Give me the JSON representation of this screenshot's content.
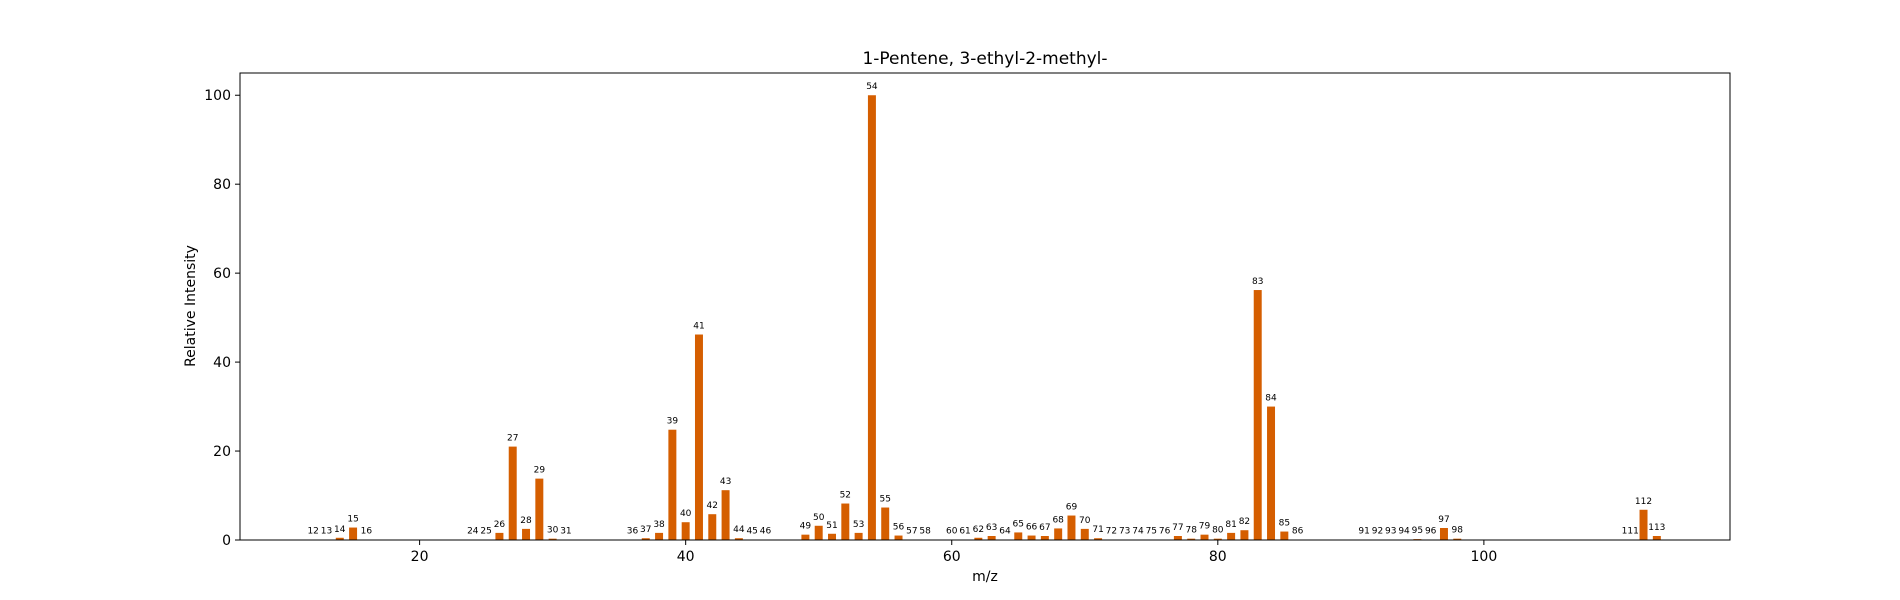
{
  "chart_data": {
    "type": "bar",
    "title": "1-Pentene, 3-ethyl-2-methyl-",
    "xlabel": "m/z",
    "ylabel": "Relative Intensity",
    "xlim": [
      6.5,
      118.5
    ],
    "ylim": [
      0,
      105
    ],
    "xticks": [
      20,
      40,
      60,
      80,
      100
    ],
    "yticks": [
      0,
      20,
      40,
      60,
      80,
      100
    ],
    "bar_color": "#d55e00",
    "grid": false,
    "x": [
      12,
      13,
      14,
      15,
      16,
      24,
      25,
      26,
      27,
      28,
      29,
      30,
      31,
      36,
      37,
      38,
      39,
      40,
      41,
      42,
      43,
      44,
      45,
      46,
      49,
      50,
      51,
      52,
      53,
      54,
      55,
      56,
      57,
      58,
      60,
      61,
      62,
      63,
      64,
      65,
      66,
      67,
      68,
      69,
      70,
      71,
      72,
      73,
      74,
      75,
      76,
      77,
      78,
      79,
      80,
      81,
      82,
      83,
      84,
      85,
      86,
      91,
      92,
      93,
      94,
      95,
      96,
      97,
      98,
      111,
      112,
      113
    ],
    "values": [
      0.1,
      0.1,
      0.5,
      2.8,
      0.1,
      0.1,
      0.1,
      1.6,
      21.0,
      2.5,
      13.8,
      0.3,
      0.1,
      0.1,
      0.4,
      1.6,
      24.8,
      4.0,
      46.2,
      5.8,
      11.2,
      0.4,
      0.1,
      0.1,
      1.2,
      3.2,
      1.4,
      8.2,
      1.6,
      100,
      7.3,
      1.0,
      0.1,
      0.1,
      0.1,
      0.1,
      0.5,
      0.9,
      0.1,
      1.7,
      1.0,
      0.9,
      2.6,
      5.5,
      2.5,
      0.4,
      0.1,
      0.1,
      0.1,
      0.1,
      0.1,
      0.9,
      0.3,
      1.2,
      0.3,
      1.6,
      2.2,
      56.2,
      30.0,
      1.9,
      0.1,
      0.1,
      0.1,
      0.1,
      0.1,
      0.2,
      0.1,
      2.7,
      0.3,
      0.1,
      6.8,
      0.9
    ],
    "data_labels": [
      "12",
      "13",
      "14",
      "15",
      "16",
      "24",
      "25",
      "26",
      "27",
      "28",
      "29",
      "30",
      "31",
      "36",
      "37",
      "38",
      "39",
      "40",
      "41",
      "42",
      "43",
      "44",
      "45",
      "46",
      "49",
      "50",
      "51",
      "52",
      "53",
      "54",
      "55",
      "56",
      "57",
      "58",
      "60",
      "61",
      "62",
      "63",
      "64",
      "65",
      "66",
      "67",
      "68",
      "69",
      "70",
      "71",
      "72",
      "73",
      "74",
      "75",
      "76",
      "77",
      "78",
      "79",
      "80",
      "81",
      "82",
      "83",
      "84",
      "85",
      "86",
      "91",
      "92",
      "93",
      "94",
      "95",
      "96",
      "97",
      "98",
      "111",
      "112",
      "113"
    ]
  }
}
